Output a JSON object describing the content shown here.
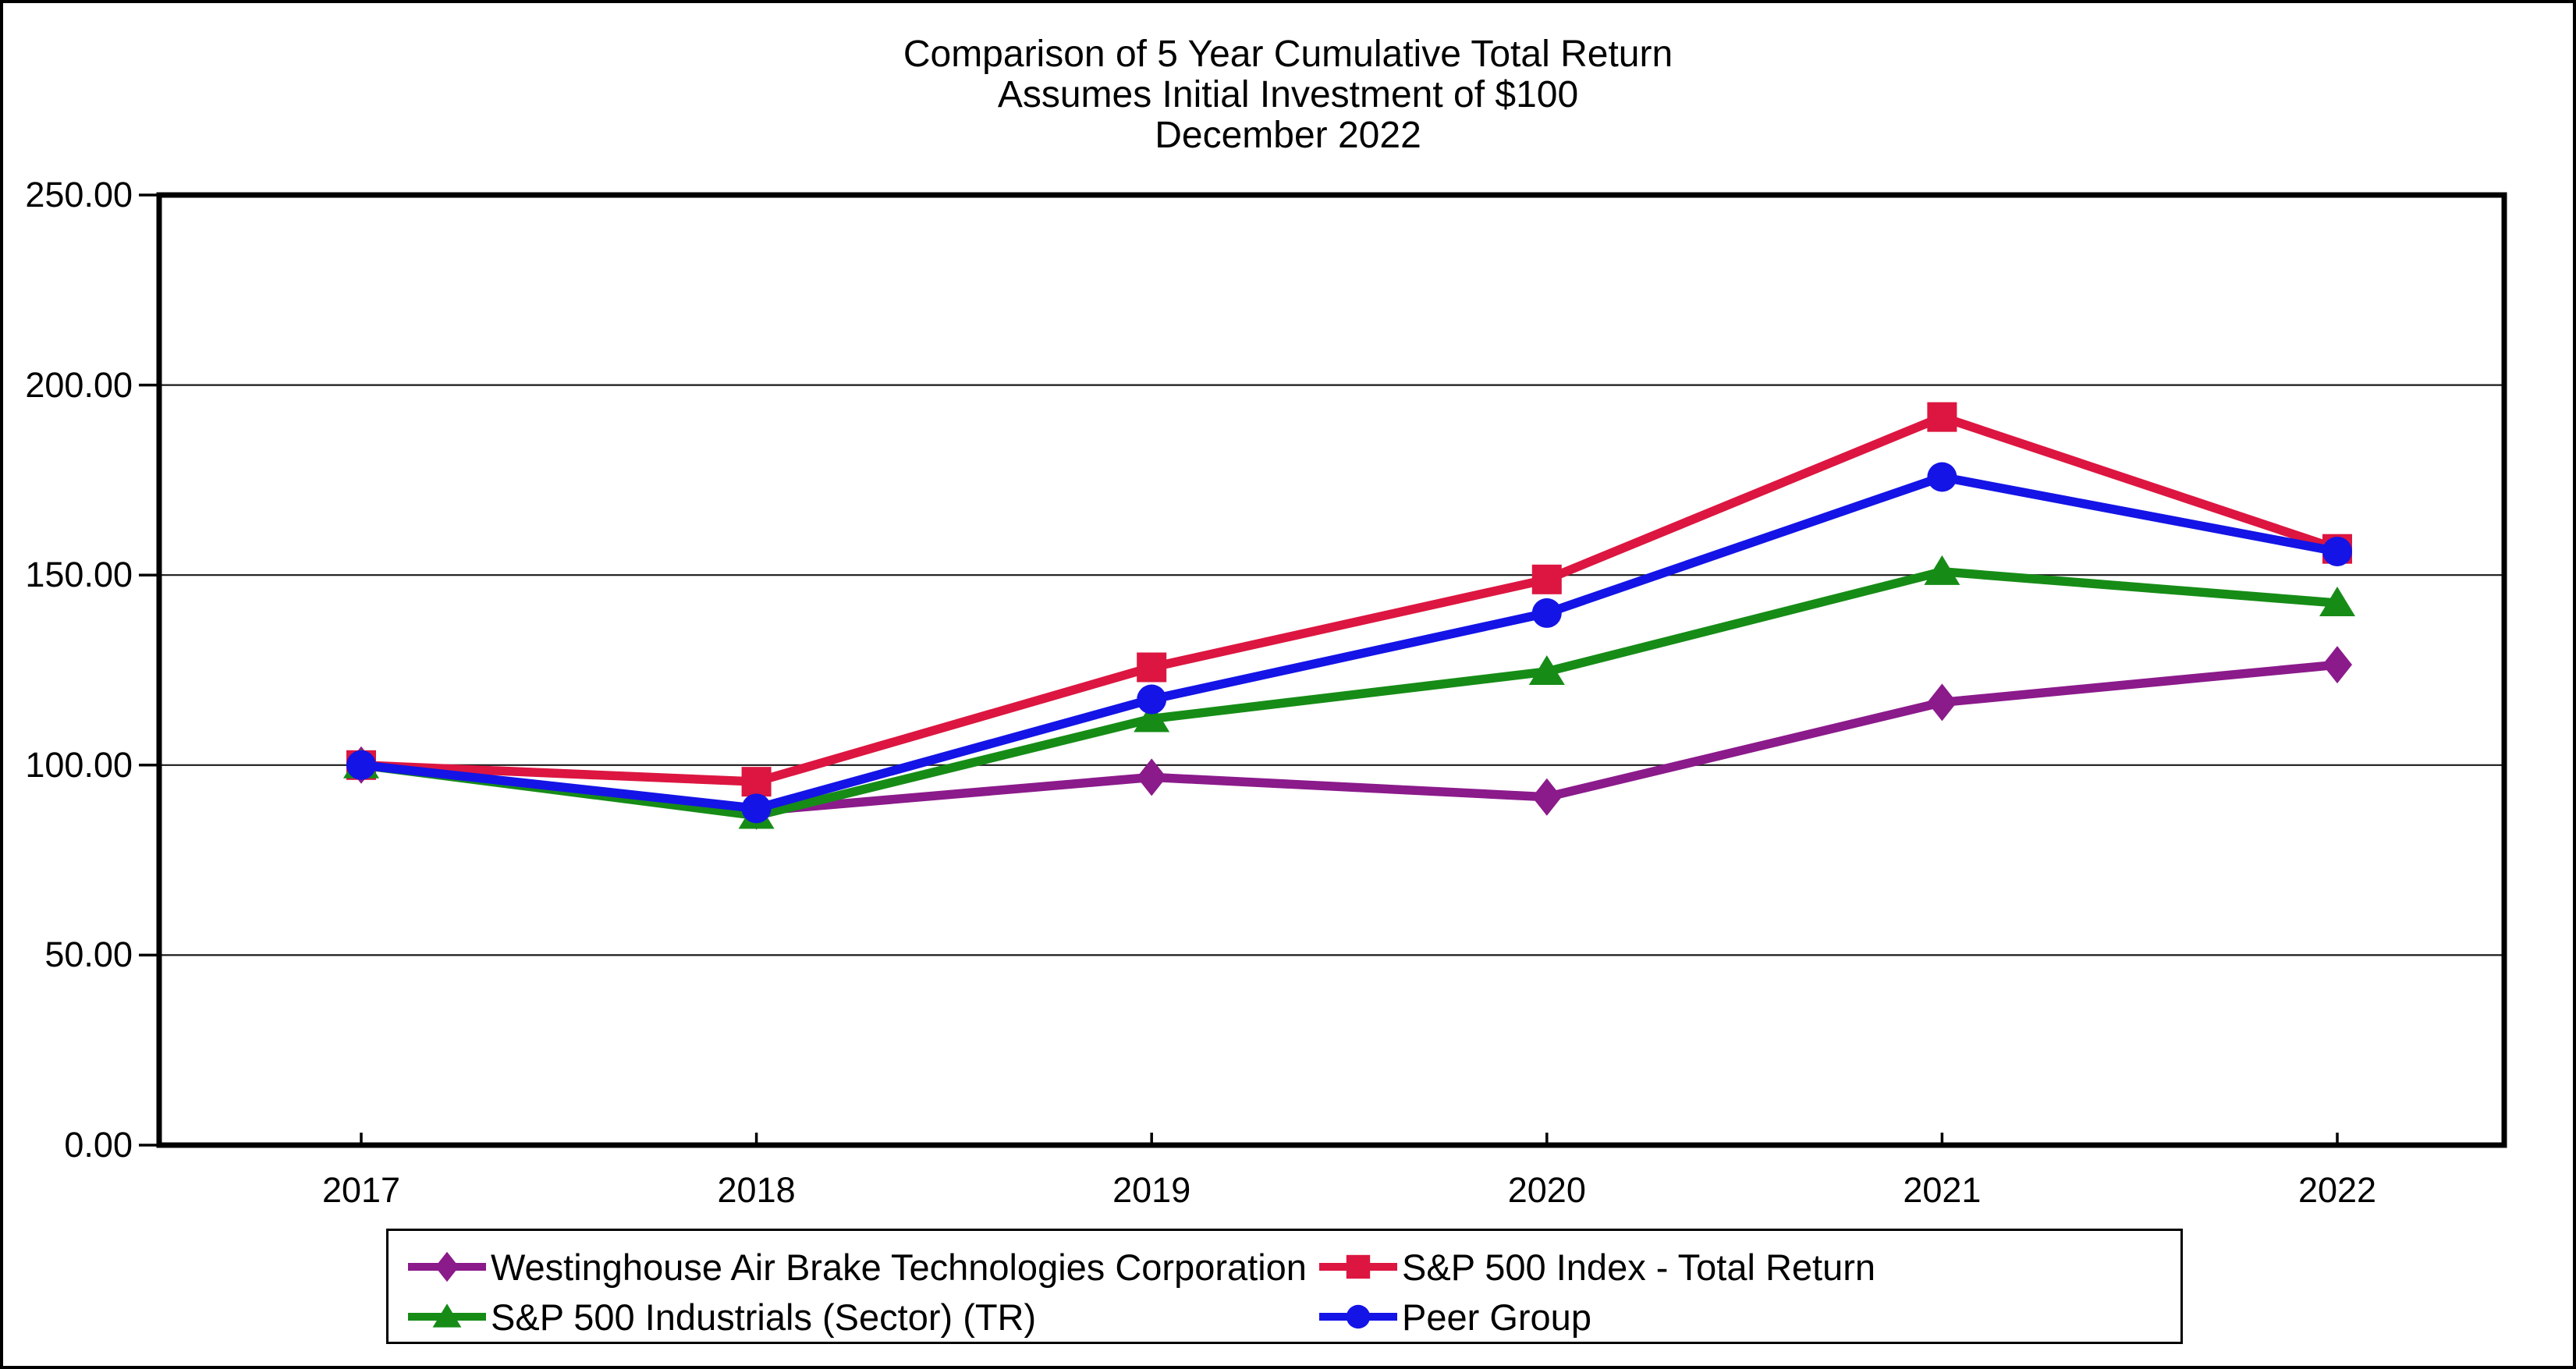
{
  "chart_data": {
    "type": "line",
    "title": "Comparison of 5 Year Cumulative Total Return",
    "subtitle": "Assumes Initial Investment of $100",
    "date_label": "December 2022",
    "x_categories": [
      "2017",
      "2018",
      "2019",
      "2020",
      "2021",
      "2022"
    ],
    "ylim": [
      0,
      250
    ],
    "ytick_step": 50,
    "grid": "horizontal-only",
    "legend_position": "bottom",
    "series": [
      {
        "name": "Westinghouse Air Brake Technologies Corporation",
        "marker": "diamond",
        "color": "#8B1A8B",
        "values": [
          100.0,
          87.9,
          96.8,
          91.6,
          116.5,
          126.4
        ]
      },
      {
        "name": "S&P 500 Index - Total Return",
        "marker": "square",
        "color": "#DC1640",
        "values": [
          100.0,
          95.62,
          125.72,
          148.85,
          191.58,
          156.88
        ]
      },
      {
        "name": "S&P 500 Industrials (Sector) (TR)",
        "marker": "triangle",
        "color": "#168C16",
        "values": [
          100.0,
          86.71,
          112.18,
          124.59,
          150.9,
          142.64
        ]
      },
      {
        "name": "Peer Group",
        "marker": "circle",
        "color": "#1414E6",
        "values": [
          100.0,
          88.6,
          117.3,
          140.0,
          175.8,
          156.2
        ]
      }
    ]
  },
  "axis": {
    "y_tick_labels": [
      "0.00",
      "50.00",
      "100.00",
      "150.00",
      "200.00",
      "250.00"
    ]
  }
}
